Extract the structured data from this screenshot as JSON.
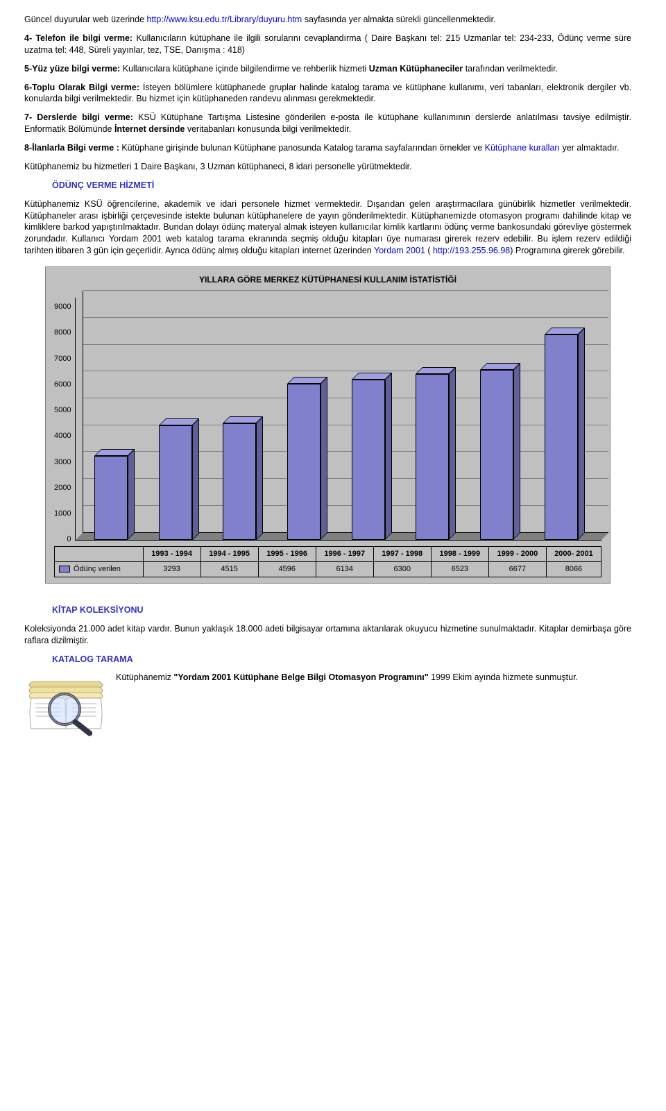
{
  "intro": {
    "line1_a": "Güncel duyurular web üzerinde ",
    "line1_link": "http://www.ksu.edu.tr/Library/duyuru.htm",
    "line1_b": " sayfasında yer almakta sürekli güncellenmektedir."
  },
  "item4": {
    "lead": "4- Telefon ile bilgi verme: ",
    "body": "Kullanıcıların kütüphane ile ilgili sorularını cevaplandırma ( Daire Başkanı tel: 215 Uzmanlar tel: 234-233, Ödünç verme süre uzatma tel: 448, Süreli yayınlar, tez, TSE, Danışma : 418)"
  },
  "item5": {
    "lead": "5-Yüz yüze bilgi verme: ",
    "mid": "Kullanıcılara kütüphane içinde bilgilendirme ve rehberlik hizmeti ",
    "bold2": "Uzman Kütüphaneciler",
    "tail": " tarafından verilmektedir."
  },
  "item6": {
    "lead": "6-Toplu Olarak Bilgi verme: ",
    "body": "İsteyen bölümlere kütüphanede gruplar halinde katalog tarama ve kütüphane kullanımı, veri tabanları, elektronik dergiler vb. konularda bilgi verilmektedir. Bu hizmet için kütüphaneden randevu alınması gerekmektedir."
  },
  "item7": {
    "lead": "7- Derslerde bilgi verme: ",
    "body_a": "KSÜ Kütüphane Tartışma Listesine  gönderilen e-posta ile  kütüphane kullanımının derslerde anlatılması tavsiye edilmiştir. Enformatik Bölümünde ",
    "bold": "İnternet dersinde",
    "body_b": " veritabanları konusunda bilgi verilmektedir."
  },
  "item8": {
    "lead": "8-İlanlarla Bilgi verme : ",
    "body_a": "Kütüphane girişinde bulunan Kütüphane panosunda Katalog tarama sayfalarından örnekler ve ",
    "link": "Kütüphane kuralları",
    "body_b": " yer almaktadır."
  },
  "staff": "Kütüphanemiz  bu  hizmetleri  1  Daire  Başkanı,  3  Uzman  kütüphaneci,  8  idari  personelle yürütmektedir.",
  "section1": {
    "head": "ÖDÜNÇ VERME HİZMETİ",
    "body_a": "Kütüphanemiz  KSÜ  öğrencilerine,  akademik  ve  idari  personele  hizmet  vermektedir.  Dışarıdan gelen araştırmacılara  günübirlik hizmetler verilmektedir. Kütüphaneler arası işbirliği çerçevesinde  istekte  bulunan  kütüphanelere  de  yayın  gönderilmektedir.  Kütüphanemizde otomasyon programı dahilinde kitap ve kimliklere barkod yapıştırılmaktadır.  Bundan dolayı ödünç materyal  almak  isteyen  kullanıcılar   kimlik  kartlarını  ödünç  verme  bankosundaki  görevliye göstermek zorundadır. Kullanıcı Yordam 2001 web katalog tarama ekranında seçmiş olduğu kitapları üye numarası girerek rezerv edebilir. Bu işlem rezerv edildiği tarihten itibaren 3 gün için geçerlidir.   Ayrıca   ödünç   almış   olduğu   kitapları   internet   üzerinden   ",
    "link1": "Yordam   2001",
    "body_b": "   ( ",
    "link2": "http://193.255.96.98",
    "body_c": ") Programına girerek görebilir."
  },
  "chart": {
    "title": "YILLARA GÖRE MERKEZ KÜTÜPHANESİ KULLANIM İSTATİSTİĞİ",
    "type": "bar",
    "ylim": [
      0,
      9000
    ],
    "ytick_step": 1000,
    "yticks": [
      "9000",
      "8000",
      "7000",
      "6000",
      "5000",
      "4000",
      "3000",
      "2000",
      "1000",
      "0"
    ],
    "bar_color_front": "#8080cc",
    "bar_color_top": "#a0a0e0",
    "bar_color_side": "#606099",
    "background_color": "#c0c0c0",
    "grid_color": "#808080",
    "categories": [
      "1993 - 1994",
      "1994 - 1995",
      "1995 - 1996",
      "1996 - 1997",
      "1997 - 1998",
      "1998 - 1999",
      "1999 - 2000",
      "2000- 2001"
    ],
    "values": [
      3293,
      4515,
      4596,
      6134,
      6300,
      6523,
      6677,
      8066
    ],
    "legend_label": "Ödünç verilen"
  },
  "section2": {
    "head": "KİTAP KOLEKSİYONU",
    "body": "Koleksiyonda  21.000 adet kitap vardır. Bunun yaklaşık 18.000 adeti bilgisayar ortamına aktarılarak okuyucu hizmetine sunulmaktadır. Kitaplar demirbaşa göre raflara dizilmiştir."
  },
  "section3": {
    "head": "KATALOG TARAMA",
    "body_a": "Kütüphanemiz   ",
    "bold1": "\"Yordam   2001   Kütüphane   Belge   Bilgi Otomasyon Programını\"",
    "body_b": "    1999  Ekim  ayında  hizmete  sunmuştur."
  }
}
